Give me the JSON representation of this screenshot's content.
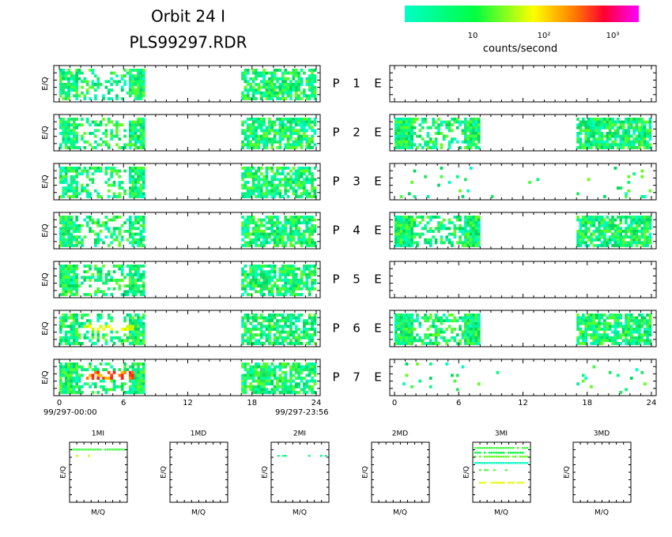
{
  "header": {
    "title": "Orbit 24 I",
    "file": "PLS99297.RDR"
  },
  "colorbar": {
    "ticks": [
      "10",
      "10²",
      "10³"
    ],
    "label": "counts/second"
  },
  "y_label": "E/Q",
  "panels": [
    {
      "p": "P",
      "number": "1",
      "e": "E"
    },
    {
      "p": "P",
      "number": "2",
      "e": "E"
    },
    {
      "p": "P",
      "number": "3",
      "e": "E"
    },
    {
      "p": "P",
      "number": "4",
      "e": "E"
    },
    {
      "p": "P",
      "number": "5",
      "e": "E"
    },
    {
      "p": "P",
      "number": "6",
      "e": "E"
    },
    {
      "p": "P",
      "number": "7",
      "e": "E"
    }
  ],
  "time_axis": {
    "ticks": [
      "0",
      "6",
      "12",
      "18",
      "24"
    ],
    "start": "99/297-00:00",
    "end": "99/297-23:56"
  },
  "mass": {
    "panels": [
      "1MI",
      "1MD",
      "2MI",
      "2MD",
      "3MI",
      "3MD"
    ],
    "x_label": "M/Q",
    "y_label": "E/Q"
  }
}
